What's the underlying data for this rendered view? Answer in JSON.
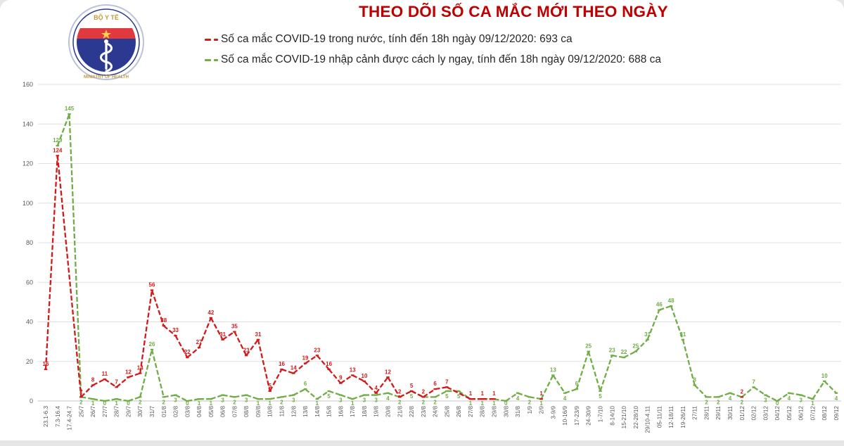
{
  "header": {
    "title": "THEO DÕI SỐ CA MẮC MỚI THEO NGÀY",
    "logo": {
      "name": "bo-y-te-emblem",
      "top_text": "BỘ Y TẾ",
      "bottom_text": "MINISTRY OF HEALTH"
    },
    "legend": [
      {
        "label": "Số ca mắc COVID-19 trong nước, tính đến 18h ngày 09/12/2020: 693 ca",
        "color": "#C00000"
      },
      {
        "label": "Số ca mắc COVID-19 nhập cảnh được cách ly ngay, tính đến 18h ngày 09/12/2020: 688 ca",
        "color": "#70AD47"
      }
    ]
  },
  "chart_data": {
    "type": "line",
    "title": "THEO DÕI SỐ CA MẮC MỚI THEO NGÀY",
    "xlabel": "",
    "ylabel": "",
    "ylim": [
      0,
      160
    ],
    "ytick_step": 20,
    "grid": true,
    "legend_position": "top",
    "line_style": "dashed",
    "categories": [
      "23.1-6.3",
      "7.3-16.4",
      "17.4-24.7",
      "25/7",
      "26/7",
      "27/7",
      "28/7",
      "29/7",
      "30/7",
      "31/7",
      "01/8",
      "02/8",
      "03/8",
      "04/8",
      "05/8",
      "06/8",
      "07/8",
      "08/8",
      "09/8",
      "10/8",
      "11/8",
      "12/8",
      "13/8",
      "14/8",
      "15/8",
      "16/8",
      "17/8",
      "18/8",
      "19/8",
      "20/8",
      "21/8",
      "22/8",
      "23/8",
      "24/8",
      "25/8",
      "26/8",
      "27/8",
      "28/8",
      "29/8",
      "30/8",
      "31/8",
      "1/9",
      "2/9",
      "3-9/9",
      "10-16/9",
      "17-23/9",
      "24-30/9",
      "1-7/10",
      "8-14/10",
      "15-21/10",
      "22-28/10",
      "29/10-4.11",
      "05-11/11",
      "12-18/11",
      "19-26/11",
      "27/11",
      "28/11",
      "29/11",
      "30/11",
      "01/12",
      "02/12",
      "03/12",
      "04/12",
      "05/12",
      "06/12",
      "07/12",
      "08/12",
      "09/12"
    ],
    "series": [
      {
        "name": "Số ca mắc COVID-19 trong nước, tính đến 18h ngày 09/12/2020: 693 ca",
        "color": "#D31A1A",
        "values": [
          16,
          124,
          null,
          2,
          8,
          11,
          7,
          12,
          14,
          56,
          38,
          33,
          22,
          27,
          42,
          31,
          35,
          23,
          31,
          5,
          16,
          14,
          19,
          23,
          16,
          9,
          13,
          10,
          4,
          12,
          2,
          5,
          2,
          6,
          7,
          null,
          1,
          1,
          1,
          null,
          null,
          null,
          1,
          null,
          null,
          null,
          null,
          null,
          null,
          null,
          null,
          null,
          null,
          null,
          null,
          null,
          null,
          null,
          null,
          2,
          null,
          null,
          null,
          null,
          null,
          null,
          null,
          null
        ]
      },
      {
        "name": "Số ca mắc COVID-19 nhập cảnh được cách ly ngay, tính đến 18h ngày 09/12/2020: 688 ca",
        "color": "#70AD47",
        "values": [
          null,
          129,
          145,
          2,
          1,
          0,
          1,
          0,
          2,
          26,
          2,
          3,
          0,
          1,
          1,
          3,
          2,
          3,
          1,
          1,
          2,
          3,
          6,
          1,
          5,
          3,
          1,
          3,
          3,
          4,
          2,
          5,
          2,
          2,
          5,
          5,
          1,
          1,
          1,
          0,
          4,
          2,
          1,
          13,
          4,
          6,
          25,
          5,
          23,
          22,
          25,
          31,
          46,
          48,
          31,
          8,
          2,
          2,
          4,
          2,
          7,
          3,
          0,
          4,
          3,
          1,
          10,
          4
        ]
      }
    ]
  }
}
